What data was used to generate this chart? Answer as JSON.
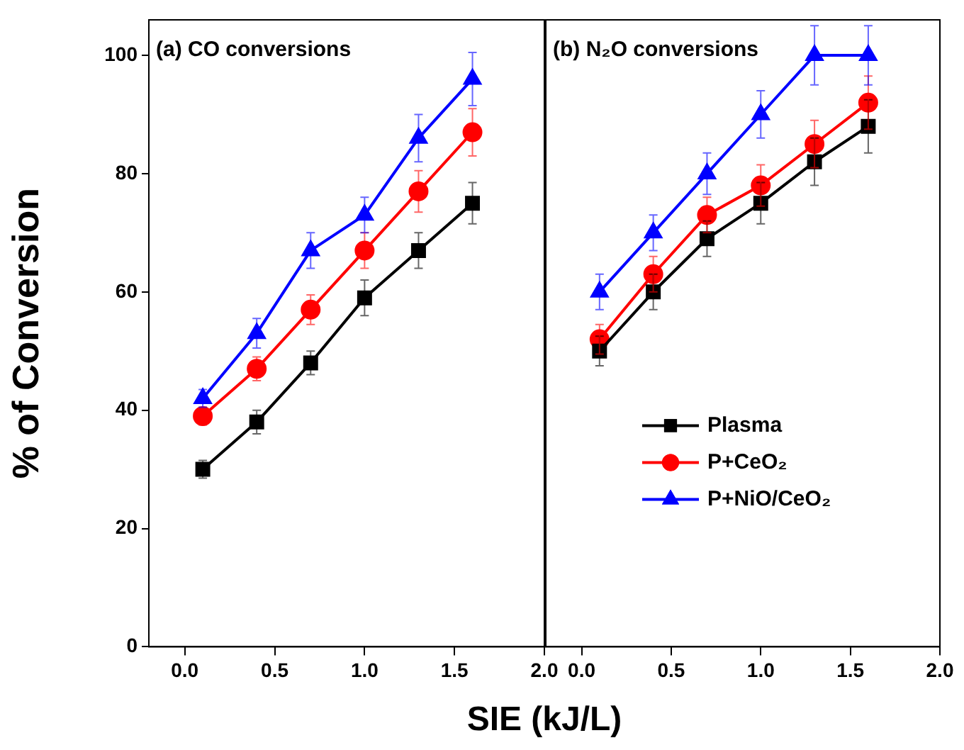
{
  "chart_data": [
    {
      "type": "line",
      "title": "(a) CO conversions",
      "ylabel": "% of Conversion",
      "xlabel": "SIE (kJ/L)",
      "x": [
        0.1,
        0.4,
        0.7,
        1.0,
        1.3,
        1.6
      ],
      "xlim": [
        -0.2,
        2.0
      ],
      "xticks": [
        {
          "value": 0,
          "label": "0.0"
        },
        {
          "value": 0.5,
          "label": "0.5"
        },
        {
          "value": 1,
          "label": "1.0"
        },
        {
          "value": 1.5,
          "label": "1.5"
        },
        {
          "value": 2,
          "label": "2.0"
        }
      ],
      "ylim": [
        0,
        106
      ],
      "yticks": [
        0,
        20,
        40,
        60,
        80,
        100
      ],
      "grid": false,
      "legend": false,
      "series": [
        {
          "color": "#000000",
          "marker": "square",
          "values": [
            30,
            38,
            48,
            59,
            67,
            75
          ],
          "errors": [
            1.5,
            2,
            2,
            3,
            3,
            3.5
          ]
        },
        {
          "color": "#ff0000",
          "marker": "circle",
          "values": [
            39,
            47,
            57,
            67,
            77,
            87
          ],
          "errors": [
            1.5,
            2,
            2.5,
            3,
            3.5,
            4
          ]
        },
        {
          "color": "#0000ff",
          "marker": "triangle",
          "values": [
            42,
            53,
            67,
            73,
            86,
            96
          ],
          "errors": [
            1.5,
            2.5,
            3,
            3,
            4,
            4.5
          ]
        }
      ]
    },
    {
      "type": "line",
      "title": "(b) N₂O conversions",
      "x": [
        0.1,
        0.4,
        0.7,
        1.0,
        1.3,
        1.6
      ],
      "xlim": [
        -0.2,
        2.0
      ],
      "xticks": [
        {
          "value": 0,
          "label": "0.0"
        },
        {
          "value": 0.5,
          "label": "0.5"
        },
        {
          "value": 1,
          "label": "1.0"
        },
        {
          "value": 1.5,
          "label": "1.5"
        },
        {
          "value": 2,
          "label": "2.0"
        }
      ],
      "ylim": [
        0,
        106
      ],
      "yticks": [
        0,
        20,
        40,
        60,
        80,
        100
      ],
      "tick_labels": "x",
      "grid": false,
      "legend": "bottom right",
      "series": [
        {
          "name": "Plasma",
          "color": "#000000",
          "marker": "square",
          "values": [
            50,
            60,
            69,
            75,
            82,
            88
          ],
          "errors": [
            2.5,
            3,
            3,
            3.5,
            4,
            4.5
          ]
        },
        {
          "name": "P+CeO₂",
          "color": "#ff0000",
          "marker": "circle",
          "values": [
            52,
            63,
            73,
            78,
            85,
            92
          ],
          "errors": [
            2.5,
            3,
            3,
            3.5,
            4,
            4.5
          ]
        },
        {
          "name": "P+NiO/CeO₂",
          "color": "#0000ff",
          "marker": "triangle",
          "values": [
            60,
            70,
            80,
            90,
            100,
            100
          ],
          "errors": [
            3,
            3,
            3.5,
            4,
            5,
            5
          ]
        }
      ]
    }
  ]
}
